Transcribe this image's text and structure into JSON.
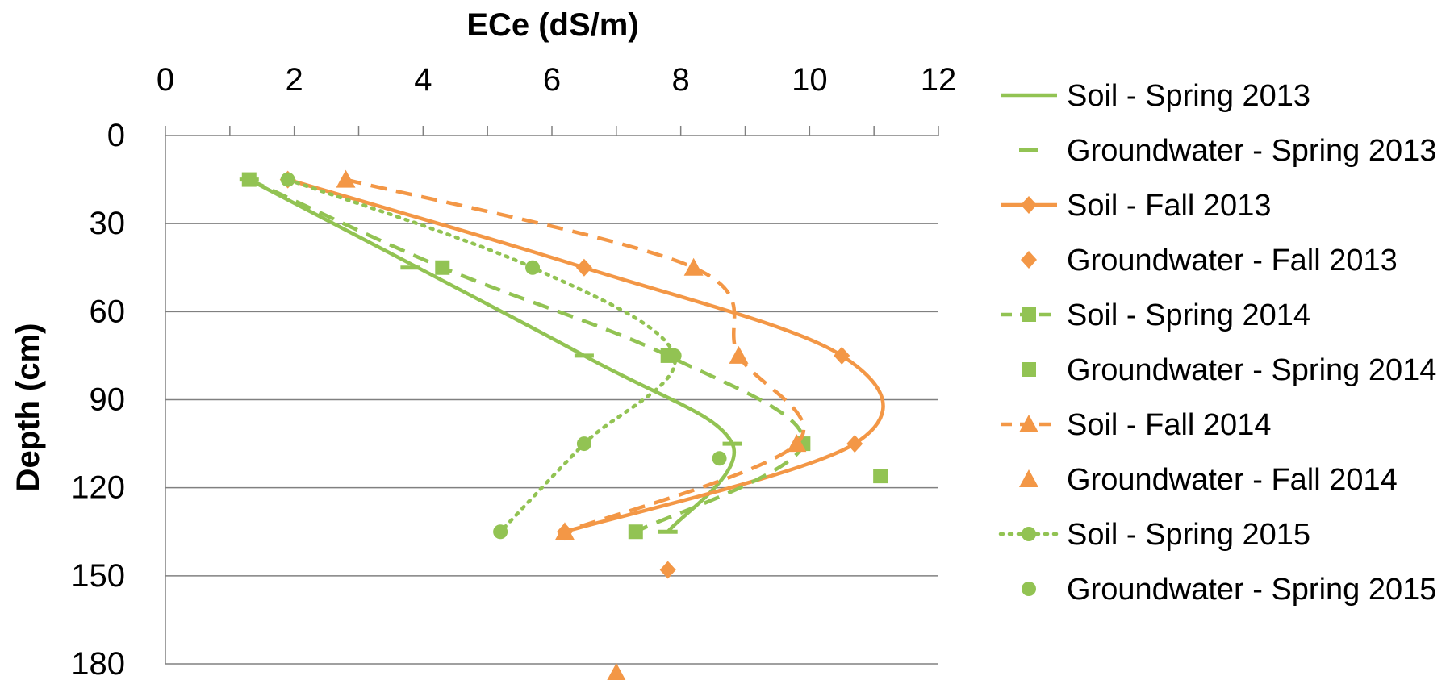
{
  "chart_data": {
    "type": "line",
    "title": "",
    "xlabel": "ECe (dS/m)",
    "ylabel": "Depth (cm)",
    "xlim": [
      0,
      12
    ],
    "ylim": [
      0,
      180
    ],
    "x_axis_position": "top",
    "y_axis_reversed": true,
    "x_ticks": [
      "0",
      "2",
      "4",
      "6",
      "8",
      "10",
      "12"
    ],
    "y_ticks": [
      "0",
      "30",
      "60",
      "90",
      "120",
      "150",
      "180"
    ],
    "grid": "horizontal",
    "legend_position": "right",
    "colors": {
      "green": "#92c353",
      "orange": "#f39746",
      "grid": "#808080"
    },
    "series": [
      {
        "name": "Soil - Spring 2013",
        "color": "green",
        "line": "solid",
        "marker": "none",
        "points": [
          [
            1.3,
            15
          ],
          [
            6.5,
            75
          ],
          [
            8.8,
            105
          ],
          [
            7.8,
            135
          ]
        ]
      },
      {
        "name": "Groundwater - Spring 2013",
        "color": "green",
        "line": "none",
        "marker": "dash",
        "points": [
          [
            1.3,
            15
          ],
          [
            3.8,
            45
          ],
          [
            6.5,
            75
          ],
          [
            8.8,
            105
          ],
          [
            7.8,
            135
          ]
        ]
      },
      {
        "name": "Soil - Fall 2013",
        "color": "orange",
        "line": "solid",
        "marker": "diamond",
        "points": [
          [
            1.9,
            15
          ],
          [
            6.5,
            45
          ],
          [
            10.5,
            75
          ],
          [
            10.7,
            105
          ],
          [
            6.2,
            135
          ]
        ]
      },
      {
        "name": "Groundwater - Fall 2013",
        "color": "orange",
        "line": "none",
        "marker": "diamond",
        "points": [
          [
            7.8,
            148
          ]
        ]
      },
      {
        "name": "Soil - Spring 2014",
        "color": "green",
        "line": "dash",
        "marker": "square",
        "points": [
          [
            1.3,
            15
          ],
          [
            4.3,
            45
          ],
          [
            7.8,
            75
          ],
          [
            9.9,
            105
          ],
          [
            7.3,
            135
          ]
        ]
      },
      {
        "name": "Groundwater - Spring 2014",
        "color": "green",
        "line": "none",
        "marker": "square",
        "points": [
          [
            11.1,
            116
          ]
        ]
      },
      {
        "name": "Soil - Fall 2014",
        "color": "orange",
        "line": "dash",
        "marker": "triangle",
        "points": [
          [
            2.8,
            15
          ],
          [
            8.2,
            45
          ],
          [
            8.9,
            75
          ],
          [
            9.8,
            105
          ],
          [
            6.2,
            135
          ]
        ]
      },
      {
        "name": "Groundwater - Fall 2014",
        "color": "orange",
        "line": "none",
        "marker": "triangle",
        "points": [
          [
            7.0,
            183
          ]
        ]
      },
      {
        "name": "Soil - Spring 2015",
        "color": "green",
        "line": "dot",
        "marker": "circle",
        "points": [
          [
            1.9,
            15
          ],
          [
            5.7,
            45
          ],
          [
            7.9,
            75
          ],
          [
            6.5,
            105
          ],
          [
            5.2,
            135
          ]
        ]
      },
      {
        "name": "Groundwater - Spring 2015",
        "color": "green",
        "line": "none",
        "marker": "circle",
        "points": [
          [
            8.6,
            110
          ]
        ]
      }
    ]
  }
}
